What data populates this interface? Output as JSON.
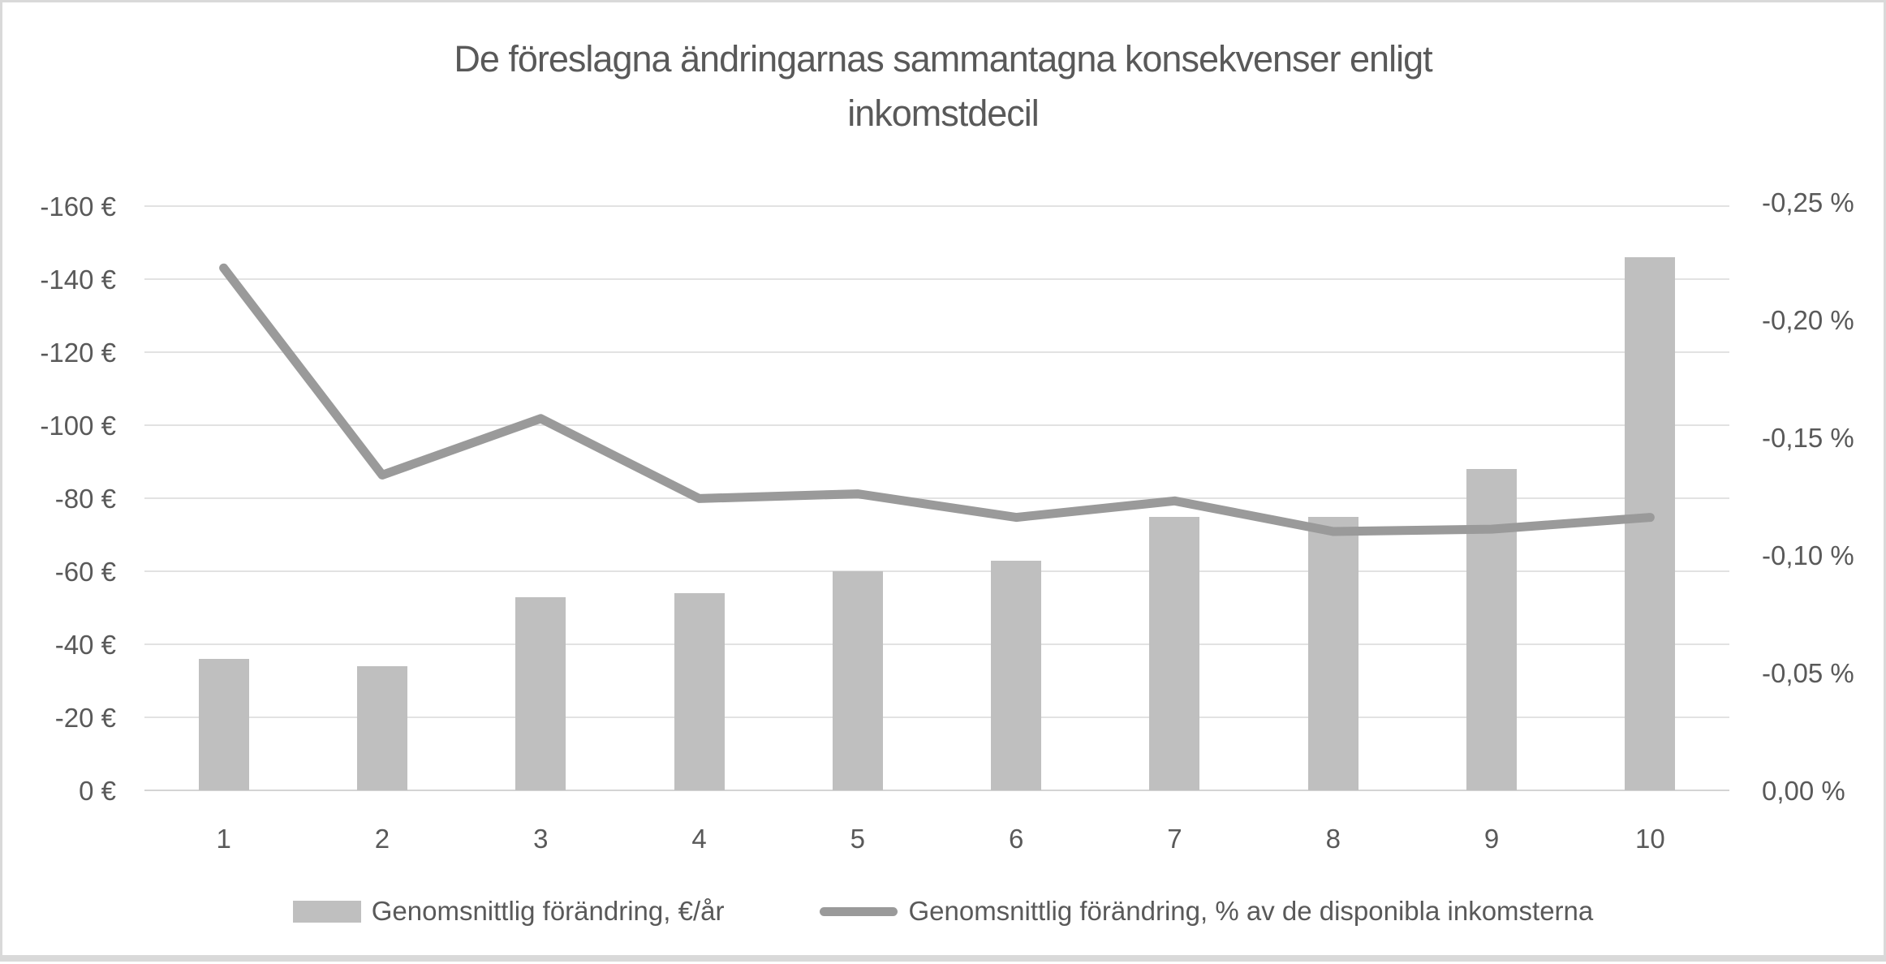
{
  "title": {
    "line1": "De föreslagna ändringarnas sammantagna konsekvenser enligt",
    "line2": "inkomstdecil"
  },
  "colors": {
    "bar_fill": "#bfbfbf",
    "line_stroke": "#9a9a9a",
    "gridline": "#e2e2e2",
    "axis_line": "#d4d4d4",
    "text": "#595959",
    "frame_border": "#d9d9d9"
  },
  "chart_data": {
    "type": "bar",
    "combo": "bar+line, dual axis, both axes inverted (0 at bottom, negatives increase upward)",
    "title": "De föreslagna ändringarnas sammantagna konsekvenser enligt inkomstdecil",
    "categories": [
      "1",
      "2",
      "3",
      "4",
      "5",
      "6",
      "7",
      "8",
      "9",
      "10"
    ],
    "xlabel": "",
    "ylabel": "",
    "grid": true,
    "legend_position": "bottom",
    "left_axis": {
      "unit": "€",
      "min": -160,
      "max": 0,
      "tick_step": 20,
      "tick_labels": [
        "-160 €",
        "-140 €",
        "-120 €",
        "-100 €",
        "-80 €",
        "-60 €",
        "-40 €",
        "-20 €",
        "0 €"
      ]
    },
    "right_axis": {
      "unit": "%",
      "min": -0.25,
      "max": 0,
      "tick_step": 0.05,
      "tick_labels": [
        "-0,25 %",
        "-0,20 %",
        "-0,15 %",
        "-0,10 %",
        "-0,05 %",
        "0,00 %"
      ]
    },
    "series": [
      {
        "name": "Genomsnittlig förändring, €/år",
        "type": "bar",
        "axis": "left",
        "values": [
          -36,
          -34,
          -53,
          -54,
          -60,
          -63,
          -75,
          -75,
          -88,
          -146
        ]
      },
      {
        "name": "Genomsnittlig förändring, % av de disponibla inkomsterna",
        "type": "line",
        "axis": "right",
        "values": [
          -0.222,
          -0.134,
          -0.158,
          -0.124,
          -0.126,
          -0.116,
          -0.123,
          -0.11,
          -0.111,
          -0.116
        ]
      }
    ]
  }
}
